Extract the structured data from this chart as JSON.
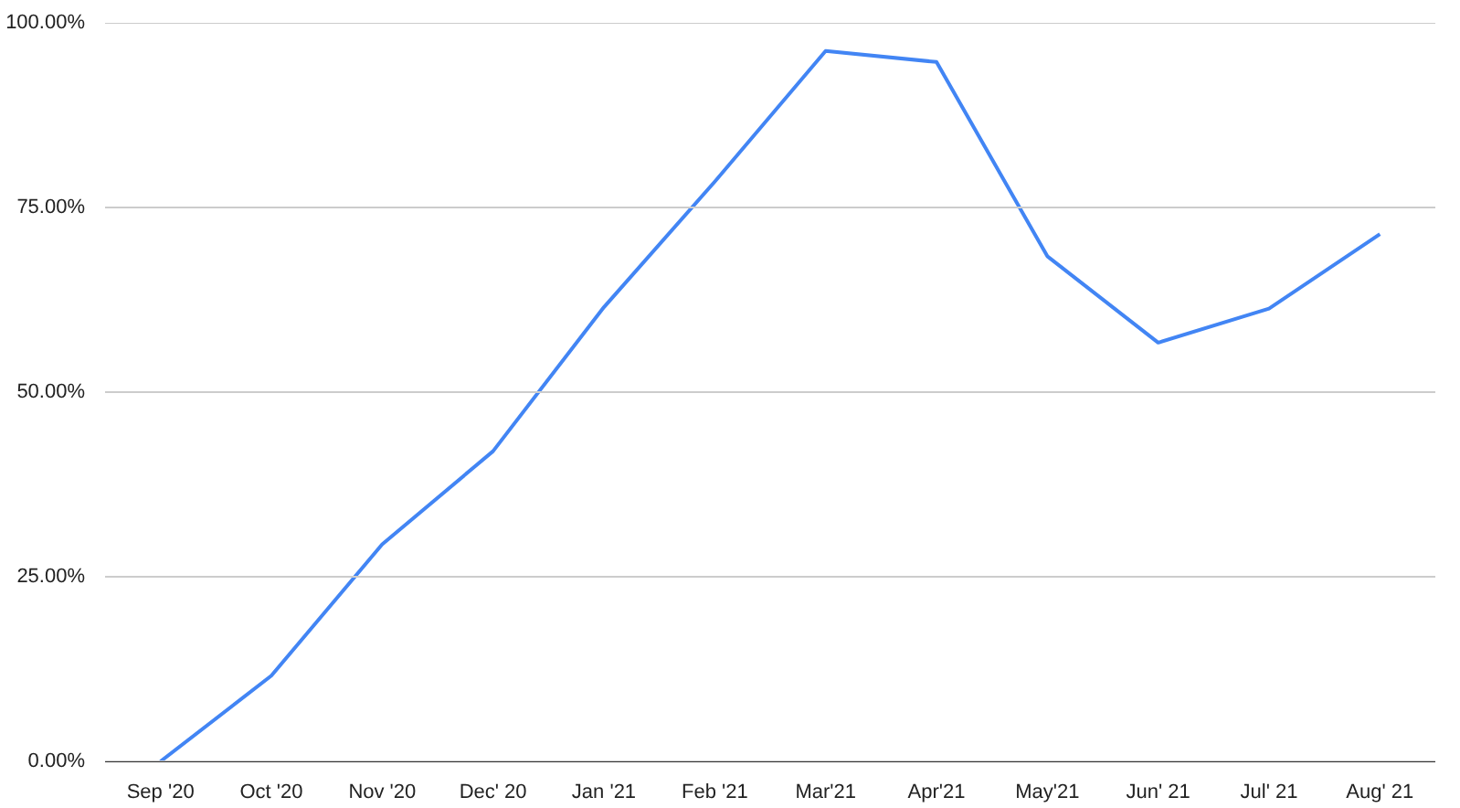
{
  "chart_data": {
    "type": "line",
    "categories": [
      "Sep '20",
      "Oct '20",
      "Nov '20",
      "Dec' 20",
      "Jan '21",
      "Feb '21",
      "Mar'21",
      "Apr'21",
      "May'21",
      "Jun' 21",
      "Jul' 21",
      "Aug' 21"
    ],
    "series": [
      {
        "color": "#4285f4",
        "values": [
          0,
          11.6,
          29.4,
          42.0,
          61.5,
          78.5,
          96.2,
          94.7,
          68.4,
          56.7,
          61.3,
          71.4
        ]
      }
    ],
    "ylim": [
      0,
      100
    ],
    "yticks": [
      {
        "value": 0,
        "label": "0.00%"
      },
      {
        "value": 25,
        "label": "25.00%"
      },
      {
        "value": 50,
        "label": "50.00%"
      },
      {
        "value": 75,
        "label": "75.00%"
      },
      {
        "value": 100,
        "label": "100.00%"
      }
    ],
    "grid": "y",
    "marker": "none",
    "line_style": "solid"
  }
}
